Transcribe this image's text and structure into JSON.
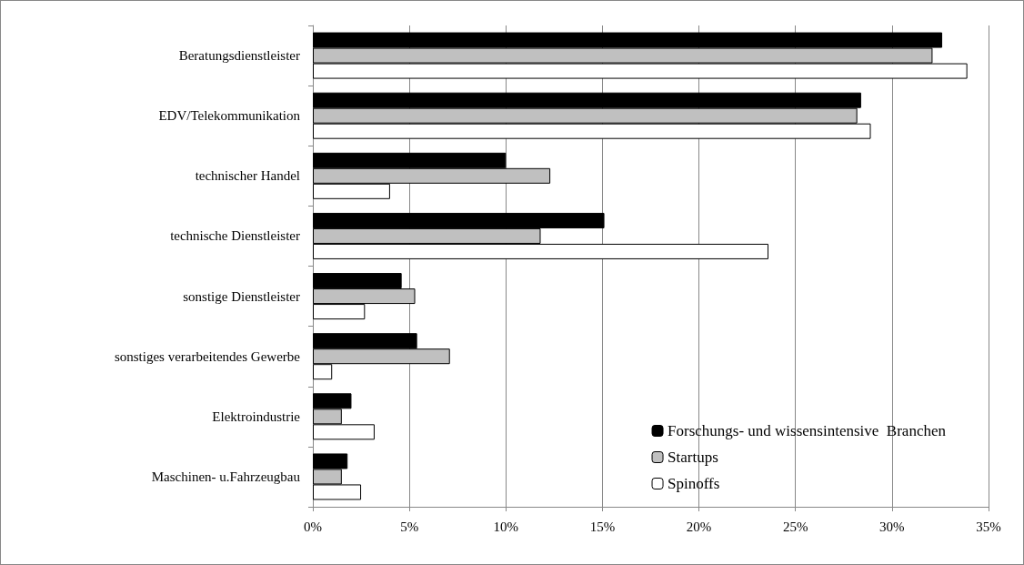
{
  "chart_data": {
    "type": "bar",
    "orientation": "horizontal",
    "categories": [
      "Beratungsdienstleister",
      "EDV/Telekommunikation",
      "technischer Handel",
      "technische Dienstleister",
      "sonstige Dienstleister",
      "sonstiges verarbeitendes Gewerbe",
      "Elektroindustrie",
      "Maschinen- u.Fahrzeugbau"
    ],
    "series": [
      {
        "name": "Forschungs- und wissensintensive  Branchen",
        "color": "#000000",
        "values": [
          32.6,
          28.4,
          10.0,
          15.1,
          4.6,
          5.4,
          2.0,
          1.8
        ]
      },
      {
        "name": "Startups",
        "color": "#c0c0c0",
        "values": [
          32.1,
          28.2,
          12.3,
          11.8,
          5.3,
          7.1,
          1.5,
          1.5
        ]
      },
      {
        "name": "Spinoffs",
        "color": "#ffffff",
        "values": [
          33.9,
          28.9,
          4.0,
          23.6,
          2.7,
          1.0,
          3.2,
          2.5
        ]
      }
    ],
    "xlim": [
      0,
      35
    ],
    "xticks": [
      {
        "value": 0,
        "label": "0%"
      },
      {
        "value": 5,
        "label": "5%"
      },
      {
        "value": 10,
        "label": "10%"
      },
      {
        "value": 15,
        "label": "15%"
      },
      {
        "value": 20,
        "label": "20%"
      },
      {
        "value": 25,
        "label": "25%"
      },
      {
        "value": 30,
        "label": "30%"
      },
      {
        "value": 35,
        "label": "35%"
      }
    ],
    "grid": "x",
    "legend": "bottom right"
  }
}
